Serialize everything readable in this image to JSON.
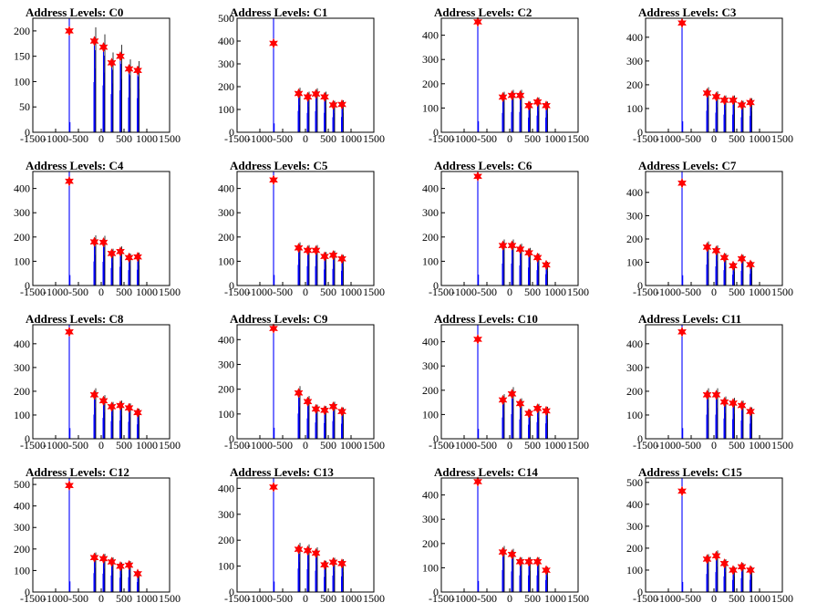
{
  "colors": {
    "spike": "#0000ff",
    "marker": "#ff0000",
    "axis": "#000000",
    "shadow": "#000000"
  },
  "chart_data": [
    {
      "type": "bar",
      "title": "Address Levels: C0",
      "xlim": [
        -1500,
        1500
      ],
      "ylim": [
        0,
        225
      ],
      "yticks": [
        0,
        50,
        100,
        150,
        200
      ],
      "xticks": [
        -1500,
        -1000,
        -500,
        0,
        500,
        1000,
        1500
      ],
      "xtick_labels": [
        "-1500",
        "-1000",
        "-500",
        "0",
        "500",
        "1000",
        "1500"
      ],
      "peaks": [
        {
          "x": -700,
          "y": 200
        },
        {
          "x": -150,
          "y": 180
        },
        {
          "x": 50,
          "y": 168
        },
        {
          "x": 230,
          "y": 137
        },
        {
          "x": 420,
          "y": 150
        },
        {
          "x": 610,
          "y": 125
        },
        {
          "x": 800,
          "y": 122
        }
      ]
    },
    {
      "type": "bar",
      "title": "Address Levels: C1",
      "xlim": [
        -1500,
        1500
      ],
      "ylim": [
        0,
        500
      ],
      "yticks": [
        0,
        100,
        200,
        300,
        400,
        500
      ],
      "xticks": [
        -1500,
        -1000,
        -500,
        0,
        500,
        1000,
        1500
      ],
      "xtick_labels": [
        "-1500",
        "-1000",
        "-500",
        "0",
        "500",
        "1000",
        "1500"
      ],
      "peaks": [
        {
          "x": -700,
          "y": 390
        },
        {
          "x": -150,
          "y": 170
        },
        {
          "x": 50,
          "y": 155
        },
        {
          "x": 230,
          "y": 168
        },
        {
          "x": 420,
          "y": 155
        },
        {
          "x": 610,
          "y": 120
        },
        {
          "x": 800,
          "y": 122
        }
      ]
    },
    {
      "type": "bar",
      "title": "Address Levels: C2",
      "xlim": [
        -1500,
        1500
      ],
      "ylim": [
        0,
        470
      ],
      "yticks": [
        0,
        100,
        200,
        300,
        400
      ],
      "xticks": [
        -1500,
        -1000,
        -500,
        0,
        500,
        1000,
        1500
      ],
      "xtick_labels": [
        "-1500",
        "-1000",
        "-500",
        "0",
        "500",
        "1000",
        "1500"
      ],
      "peaks": [
        {
          "x": -700,
          "y": 455
        },
        {
          "x": -150,
          "y": 145
        },
        {
          "x": 50,
          "y": 152
        },
        {
          "x": 230,
          "y": 152
        },
        {
          "x": 420,
          "y": 110
        },
        {
          "x": 610,
          "y": 125
        },
        {
          "x": 800,
          "y": 110
        }
      ]
    },
    {
      "type": "bar",
      "title": "Address Levels: C3",
      "xlim": [
        -1500,
        1500
      ],
      "ylim": [
        0,
        480
      ],
      "yticks": [
        0,
        100,
        200,
        300,
        400
      ],
      "xticks": [
        -1500,
        -1000,
        -500,
        0,
        500,
        1000,
        1500
      ],
      "xtick_labels": [
        "-1500",
        "-1000",
        "-500",
        "0",
        "500",
        "1000",
        "1500"
      ],
      "peaks": [
        {
          "x": -700,
          "y": 460
        },
        {
          "x": -150,
          "y": 165
        },
        {
          "x": 50,
          "y": 150
        },
        {
          "x": 230,
          "y": 135
        },
        {
          "x": 420,
          "y": 135
        },
        {
          "x": 610,
          "y": 115
        },
        {
          "x": 800,
          "y": 125
        }
      ]
    },
    {
      "type": "bar",
      "title": "Address Levels: C4",
      "xlim": [
        -1500,
        1500
      ],
      "ylim": [
        0,
        470
      ],
      "yticks": [
        0,
        100,
        200,
        300,
        400
      ],
      "xticks": [
        -1500,
        -1000,
        -500,
        0,
        500,
        1000,
        1500
      ],
      "xtick_labels": [
        "-1500",
        "-1000",
        "-500",
        "0",
        "500",
        "1000",
        "1500"
      ],
      "peaks": [
        {
          "x": -700,
          "y": 430
        },
        {
          "x": -150,
          "y": 180
        },
        {
          "x": 50,
          "y": 178
        },
        {
          "x": 230,
          "y": 132
        },
        {
          "x": 420,
          "y": 140
        },
        {
          "x": 610,
          "y": 115
        },
        {
          "x": 800,
          "y": 118
        }
      ]
    },
    {
      "type": "bar",
      "title": "Address Levels: C5",
      "xlim": [
        -1500,
        1500
      ],
      "ylim": [
        0,
        470
      ],
      "yticks": [
        0,
        100,
        200,
        300,
        400
      ],
      "xticks": [
        -1500,
        -1000,
        -500,
        0,
        500,
        1000,
        1500
      ],
      "xtick_labels": [
        "-1500",
        "-1000",
        "-500",
        "0",
        "500",
        "1000",
        "1500"
      ],
      "peaks": [
        {
          "x": -700,
          "y": 435
        },
        {
          "x": -150,
          "y": 155
        },
        {
          "x": 50,
          "y": 145
        },
        {
          "x": 230,
          "y": 145
        },
        {
          "x": 420,
          "y": 120
        },
        {
          "x": 610,
          "y": 125
        },
        {
          "x": 800,
          "y": 110
        }
      ]
    },
    {
      "type": "bar",
      "title": "Address Levels: C6",
      "xlim": [
        -1500,
        1500
      ],
      "ylim": [
        0,
        470
      ],
      "yticks": [
        0,
        100,
        200,
        300,
        400
      ],
      "xticks": [
        -1500,
        -1000,
        -500,
        0,
        500,
        1000,
        1500
      ],
      "xtick_labels": [
        "-1500",
        "-1000",
        "-500",
        "0",
        "500",
        "1000",
        "1500"
      ],
      "peaks": [
        {
          "x": -700,
          "y": 450
        },
        {
          "x": -150,
          "y": 165
        },
        {
          "x": 50,
          "y": 165
        },
        {
          "x": 230,
          "y": 150
        },
        {
          "x": 420,
          "y": 135
        },
        {
          "x": 610,
          "y": 115
        },
        {
          "x": 800,
          "y": 85
        }
      ]
    },
    {
      "type": "bar",
      "title": "Address Levels: C7",
      "xlim": [
        -1500,
        1500
      ],
      "ylim": [
        0,
        490
      ],
      "yticks": [
        0,
        100,
        200,
        300,
        400
      ],
      "xticks": [
        -1500,
        -1000,
        -500,
        0,
        500,
        1000,
        1500
      ],
      "xtick_labels": [
        "-1500",
        "-1000",
        "-500",
        "0",
        "500",
        "1000",
        "1500"
      ],
      "peaks": [
        {
          "x": -700,
          "y": 440
        },
        {
          "x": -150,
          "y": 165
        },
        {
          "x": 50,
          "y": 150
        },
        {
          "x": 230,
          "y": 120
        },
        {
          "x": 420,
          "y": 85
        },
        {
          "x": 610,
          "y": 115
        },
        {
          "x": 800,
          "y": 90
        }
      ]
    },
    {
      "type": "bar",
      "title": "Address Levels: C8",
      "xlim": [
        -1500,
        1500
      ],
      "ylim": [
        0,
        480
      ],
      "yticks": [
        0,
        100,
        200,
        300,
        400
      ],
      "xticks": [
        -1500,
        -1000,
        -500,
        0,
        500,
        1000,
        1500
      ],
      "xtick_labels": [
        "-1500",
        "-1000",
        "-500",
        "0",
        "500",
        "1000",
        "1500"
      ],
      "peaks": [
        {
          "x": -700,
          "y": 450
        },
        {
          "x": -150,
          "y": 185
        },
        {
          "x": 50,
          "y": 160
        },
        {
          "x": 230,
          "y": 135
        },
        {
          "x": 420,
          "y": 140
        },
        {
          "x": 610,
          "y": 130
        },
        {
          "x": 800,
          "y": 110
        }
      ]
    },
    {
      "type": "bar",
      "title": "Address Levels: C9",
      "xlim": [
        -1500,
        1500
      ],
      "ylim": [
        0,
        460
      ],
      "yticks": [
        0,
        100,
        200,
        300,
        400
      ],
      "xticks": [
        -1500,
        -1000,
        -500,
        0,
        500,
        1000,
        1500
      ],
      "xtick_labels": [
        "-1500",
        "-1000",
        "-500",
        "0",
        "500",
        "1000",
        "1500"
      ],
      "peaks": [
        {
          "x": -700,
          "y": 445
        },
        {
          "x": -150,
          "y": 185
        },
        {
          "x": 50,
          "y": 150
        },
        {
          "x": 230,
          "y": 120
        },
        {
          "x": 420,
          "y": 115
        },
        {
          "x": 610,
          "y": 130
        },
        {
          "x": 800,
          "y": 110
        }
      ]
    },
    {
      "type": "bar",
      "title": "Address Levels: C10",
      "xlim": [
        -1500,
        1500
      ],
      "ylim": [
        0,
        470
      ],
      "yticks": [
        0,
        100,
        200,
        300,
        400
      ],
      "xticks": [
        -1500,
        -1000,
        -500,
        0,
        500,
        1000,
        1500
      ],
      "xtick_labels": [
        "-1500",
        "-1000",
        "-500",
        "0",
        "500",
        "1000",
        "1500"
      ],
      "peaks": [
        {
          "x": -700,
          "y": 410
        },
        {
          "x": -150,
          "y": 160
        },
        {
          "x": 50,
          "y": 185
        },
        {
          "x": 230,
          "y": 145
        },
        {
          "x": 420,
          "y": 105
        },
        {
          "x": 610,
          "y": 125
        },
        {
          "x": 800,
          "y": 115
        }
      ]
    },
    {
      "type": "bar",
      "title": "Address Levels: C11",
      "xlim": [
        -1500,
        1500
      ],
      "ylim": [
        0,
        480
      ],
      "yticks": [
        0,
        100,
        200,
        300,
        400
      ],
      "xticks": [
        -1500,
        -1000,
        -500,
        0,
        500,
        1000,
        1500
      ],
      "xtick_labels": [
        "-1500",
        "-1000",
        "-500",
        "0",
        "500",
        "1000",
        "1500"
      ],
      "peaks": [
        {
          "x": -700,
          "y": 450
        },
        {
          "x": -150,
          "y": 185
        },
        {
          "x": 50,
          "y": 185
        },
        {
          "x": 230,
          "y": 155
        },
        {
          "x": 420,
          "y": 150
        },
        {
          "x": 610,
          "y": 140
        },
        {
          "x": 800,
          "y": 115
        }
      ]
    },
    {
      "type": "bar",
      "title": "Address Levels: C12",
      "xlim": [
        -1500,
        1500
      ],
      "ylim": [
        0,
        530
      ],
      "yticks": [
        0,
        100,
        200,
        300,
        400,
        500
      ],
      "xticks": [
        -1500,
        -1000,
        -500,
        0,
        500,
        1000,
        1500
      ],
      "xtick_labels": [
        "-1500",
        "-1000",
        "-500",
        "0",
        "500",
        "1000",
        "1500"
      ],
      "peaks": [
        {
          "x": -700,
          "y": 495
        },
        {
          "x": -150,
          "y": 160
        },
        {
          "x": 50,
          "y": 155
        },
        {
          "x": 230,
          "y": 140
        },
        {
          "x": 420,
          "y": 120
        },
        {
          "x": 610,
          "y": 125
        },
        {
          "x": 800,
          "y": 85
        }
      ]
    },
    {
      "type": "bar",
      "title": "Address Levels: C13",
      "xlim": [
        -1500,
        1500
      ],
      "ylim": [
        0,
        440
      ],
      "yticks": [
        0,
        100,
        200,
        300,
        400
      ],
      "xticks": [
        -1500,
        -1000,
        -500,
        0,
        500,
        1000,
        1500
      ],
      "xtick_labels": [
        "-1500",
        "-1000",
        "-500",
        "0",
        "500",
        "1000",
        "1500"
      ],
      "peaks": [
        {
          "x": -700,
          "y": 405
        },
        {
          "x": -150,
          "y": 165
        },
        {
          "x": 50,
          "y": 160
        },
        {
          "x": 230,
          "y": 150
        },
        {
          "x": 420,
          "y": 105
        },
        {
          "x": 610,
          "y": 115
        },
        {
          "x": 800,
          "y": 110
        }
      ]
    },
    {
      "type": "bar",
      "title": "Address Levels: C14",
      "xlim": [
        -1500,
        1500
      ],
      "ylim": [
        0,
        470
      ],
      "yticks": [
        0,
        100,
        200,
        300,
        400
      ],
      "xticks": [
        -1500,
        -1000,
        -500,
        0,
        500,
        1000,
        1500
      ],
      "xtick_labels": [
        "-1500",
        "-1000",
        "-500",
        "0",
        "500",
        "1000",
        "1500"
      ],
      "peaks": [
        {
          "x": -700,
          "y": 455
        },
        {
          "x": -150,
          "y": 165
        },
        {
          "x": 50,
          "y": 155
        },
        {
          "x": 230,
          "y": 125
        },
        {
          "x": 420,
          "y": 125
        },
        {
          "x": 610,
          "y": 125
        },
        {
          "x": 800,
          "y": 90
        }
      ]
    },
    {
      "type": "bar",
      "title": "Address Levels: C15",
      "xlim": [
        -1500,
        1500
      ],
      "ylim": [
        0,
        520
      ],
      "yticks": [
        0,
        100,
        200,
        300,
        400,
        500
      ],
      "xticks": [
        -1500,
        -1000,
        -500,
        0,
        500,
        1000,
        1500
      ],
      "xtick_labels": [
        "-1500",
        "-1000",
        "-500",
        "0",
        "500",
        "1000",
        "1500"
      ],
      "peaks": [
        {
          "x": -700,
          "y": 460
        },
        {
          "x": -150,
          "y": 150
        },
        {
          "x": 50,
          "y": 165
        },
        {
          "x": 230,
          "y": 130
        },
        {
          "x": 420,
          "y": 100
        },
        {
          "x": 610,
          "y": 115
        },
        {
          "x": 800,
          "y": 100
        }
      ]
    }
  ]
}
